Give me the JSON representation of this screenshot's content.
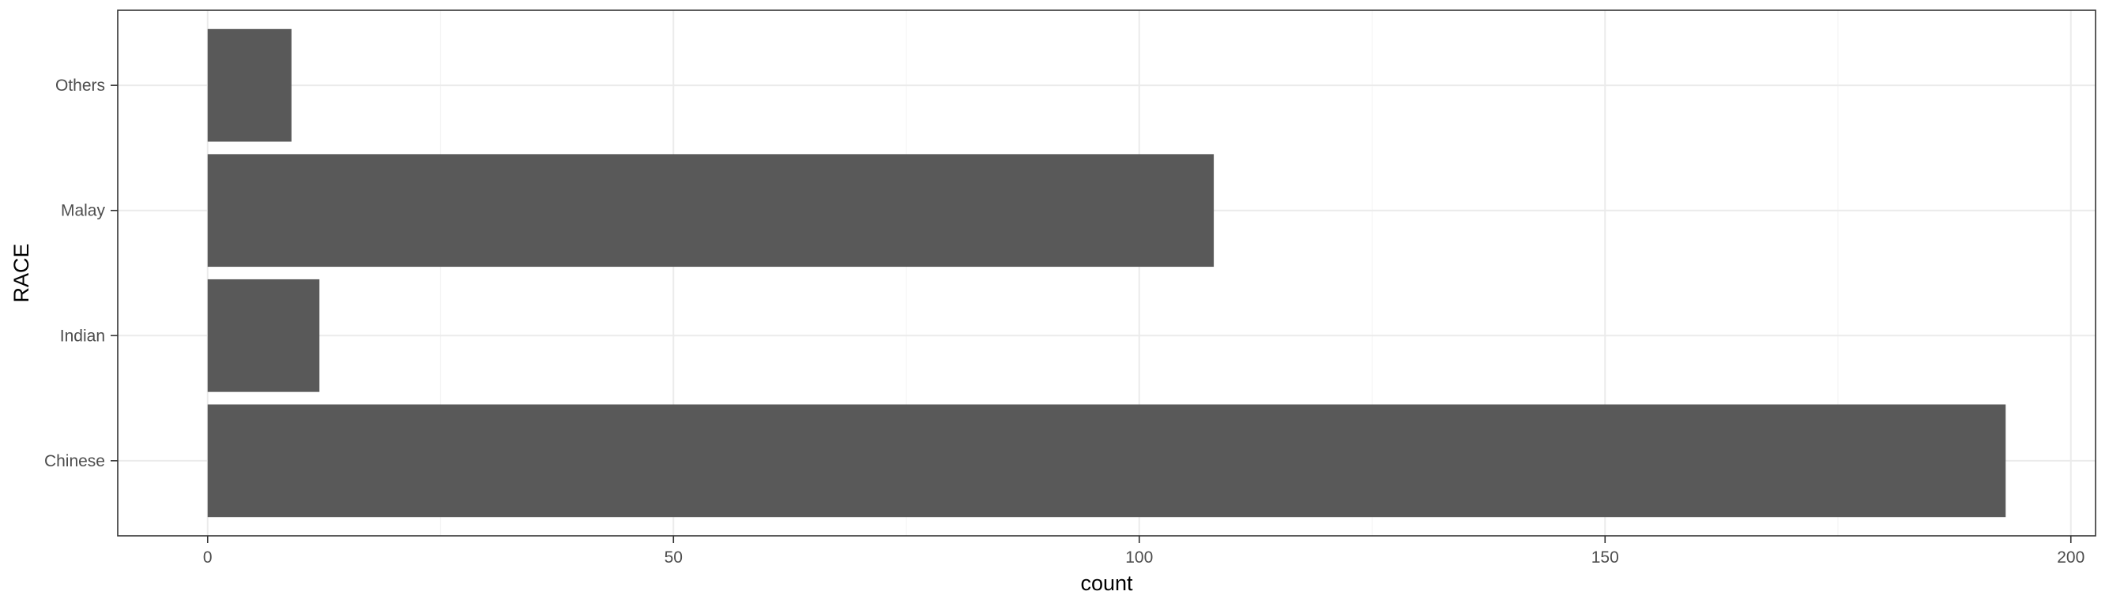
{
  "colors": {
    "bar": "#595959",
    "panel_border": "#333333",
    "grid_major": "#ebebeb",
    "grid_minor": "#f5f5f5",
    "tick_text": "#4d4d4d",
    "axis_title": "#000000",
    "background": "#ffffff"
  },
  "chart_data": {
    "type": "bar",
    "orientation": "horizontal",
    "title": "",
    "xlabel": "count",
    "ylabel": "RACE",
    "categories": [
      "Chinese",
      "Indian",
      "Malay",
      "Others"
    ],
    "values": [
      193,
      12,
      108,
      9
    ],
    "xlim": [
      -9.65,
      202.65
    ],
    "xticks": [
      0,
      50,
      100,
      150,
      200
    ],
    "xtick_labels": [
      "0",
      "50",
      "100",
      "150",
      "200"
    ],
    "grid": true,
    "legend": "none"
  }
}
